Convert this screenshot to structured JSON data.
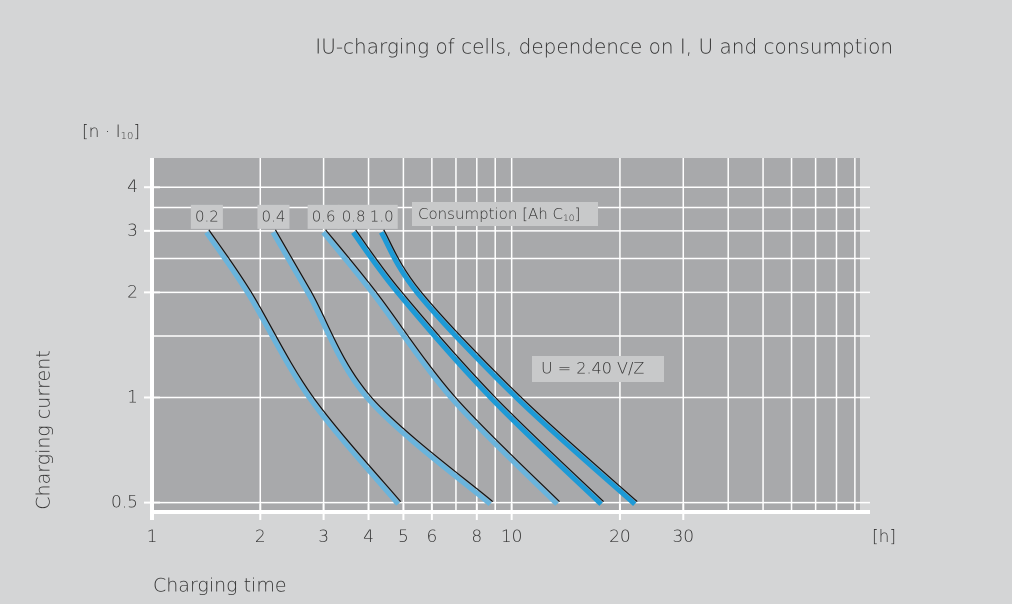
{
  "chart_data": {
    "type": "line",
    "title": "IU-charging of cells, dependence on I, U and consumption",
    "y_unit": {
      "pre": "[n · I",
      "sub": "10",
      "post": "]"
    },
    "y_label": "Charging current",
    "x_label": "Charging time",
    "x_unit": "[h]",
    "legend_title": {
      "pre": "Consumption [Ah C",
      "sub": "10",
      "post": "]"
    },
    "annotation": "U = 2.40 V/Z",
    "log_x": true,
    "log_y": true,
    "grid": true,
    "xlim": [
      1,
      93
    ],
    "ylim": [
      0.47,
      4.85
    ],
    "xticks": [
      1,
      2,
      3,
      4,
      5,
      6,
      8,
      10,
      20,
      30
    ],
    "xminor": [
      7,
      9,
      40,
      50,
      60,
      70,
      80,
      90
    ],
    "yticks": [
      0.5,
      1,
      2,
      3,
      4
    ],
    "yminor": [
      1.5,
      2.5,
      3.5
    ],
    "series": [
      {
        "name": "0.2",
        "color": "#6ab4dc",
        "x": [
          1.43,
          1.87,
          2.78,
          4.88
        ],
        "values": [
          3,
          2,
          1,
          0.5
        ]
      },
      {
        "name": "0.4",
        "color": "#6ab4dc",
        "x": [
          2.19,
          2.75,
          4.03,
          8.8
        ],
        "values": [
          3,
          2,
          1,
          0.5
        ]
      },
      {
        "name": "0.6",
        "color": "#6ab4dc",
        "x": [
          3.02,
          4.16,
          6.9,
          13.5
        ],
        "values": [
          3,
          2,
          1,
          0.5
        ]
      },
      {
        "name": "0.8",
        "color": "#1e9ad6",
        "x": [
          3.66,
          4.9,
          8.9,
          17.9
        ],
        "values": [
          3,
          2,
          1,
          0.5
        ]
      },
      {
        "name": "1.0",
        "color": "#1e9ad6",
        "x": [
          4.38,
          5.55,
          10.5,
          22.2
        ],
        "values": [
          3,
          2,
          1,
          0.5
        ]
      }
    ]
  }
}
